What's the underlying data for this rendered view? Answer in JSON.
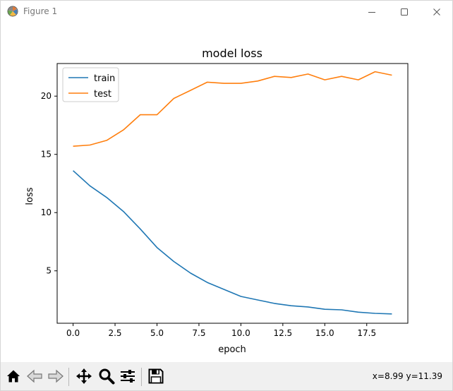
{
  "window": {
    "title": "Figure 1",
    "minimize_icon": "minimize-icon",
    "maximize_icon": "maximize-icon",
    "close_icon": "close-icon"
  },
  "toolbar": {
    "buttons": [
      {
        "name": "home",
        "icon": "home-icon"
      },
      {
        "name": "back",
        "icon": "back-arrow-icon"
      },
      {
        "name": "forward",
        "icon": "forward-arrow-icon"
      },
      {
        "name": "pan",
        "icon": "move-icon"
      },
      {
        "name": "zoom",
        "icon": "zoom-icon"
      },
      {
        "name": "configure-subplots",
        "icon": "sliders-icon"
      },
      {
        "name": "save",
        "icon": "save-icon"
      }
    ],
    "coords": "x=8.99 y=11.39"
  },
  "chart_data": {
    "type": "line",
    "title": "model loss",
    "xlabel": "epoch",
    "ylabel": "loss",
    "xlim": [
      -0.95,
      19.95
    ],
    "ylim": [
      0.5,
      22.8
    ],
    "xticks": [
      0.0,
      2.5,
      5.0,
      7.5,
      10.0,
      12.5,
      15.0,
      17.5
    ],
    "xtick_labels": [
      "0.0",
      "2.5",
      "5.0",
      "7.5",
      "10.0",
      "12.5",
      "15.0",
      "17.5"
    ],
    "yticks": [
      5,
      10,
      15,
      20
    ],
    "ytick_labels": [
      "5",
      "10",
      "15",
      "20"
    ],
    "grid": false,
    "legend": "upper-left",
    "x": [
      0,
      1,
      2,
      3,
      4,
      5,
      6,
      7,
      8,
      9,
      10,
      11,
      12,
      13,
      14,
      15,
      16,
      17,
      18,
      19
    ],
    "series": [
      {
        "name": "train",
        "color": "#1f77b4",
        "values": [
          13.6,
          12.3,
          11.3,
          10.1,
          8.6,
          7.0,
          5.8,
          4.8,
          4.0,
          3.4,
          2.8,
          2.5,
          2.2,
          2.0,
          1.9,
          1.7,
          1.65,
          1.45,
          1.35,
          1.3
        ]
      },
      {
        "name": "test",
        "color": "#ff7f0e",
        "values": [
          15.7,
          15.8,
          16.2,
          17.1,
          18.4,
          18.4,
          19.8,
          20.5,
          21.2,
          21.1,
          21.1,
          21.3,
          21.7,
          21.6,
          21.9,
          21.4,
          21.7,
          21.4,
          22.1,
          21.8
        ]
      }
    ]
  }
}
